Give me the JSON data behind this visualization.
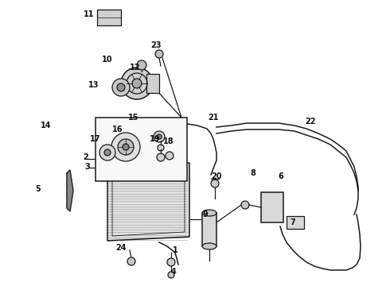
{
  "background_color": "#ffffff",
  "line_color": "#1a1a1a",
  "figsize": [
    4.9,
    3.6
  ],
  "dpi": 100,
  "labels": [
    [
      "11",
      112,
      18
    ],
    [
      "23",
      196,
      57
    ],
    [
      "10",
      135,
      75
    ],
    [
      "12",
      170,
      85
    ],
    [
      "13",
      118,
      107
    ],
    [
      "14",
      58,
      158
    ],
    [
      "15",
      168,
      148
    ],
    [
      "16",
      148,
      163
    ],
    [
      "17",
      120,
      175
    ],
    [
      "18",
      212,
      178
    ],
    [
      "19",
      195,
      175
    ],
    [
      "21",
      268,
      148
    ],
    [
      "22",
      390,
      153
    ],
    [
      "2",
      108,
      198
    ],
    [
      "3",
      110,
      210
    ],
    [
      "20",
      272,
      222
    ],
    [
      "8",
      318,
      218
    ],
    [
      "6",
      353,
      222
    ],
    [
      "7",
      368,
      280
    ],
    [
      "5",
      48,
      238
    ],
    [
      "9",
      258,
      270
    ],
    [
      "1",
      220,
      315
    ],
    [
      "4",
      218,
      342
    ],
    [
      "24",
      152,
      312
    ]
  ]
}
